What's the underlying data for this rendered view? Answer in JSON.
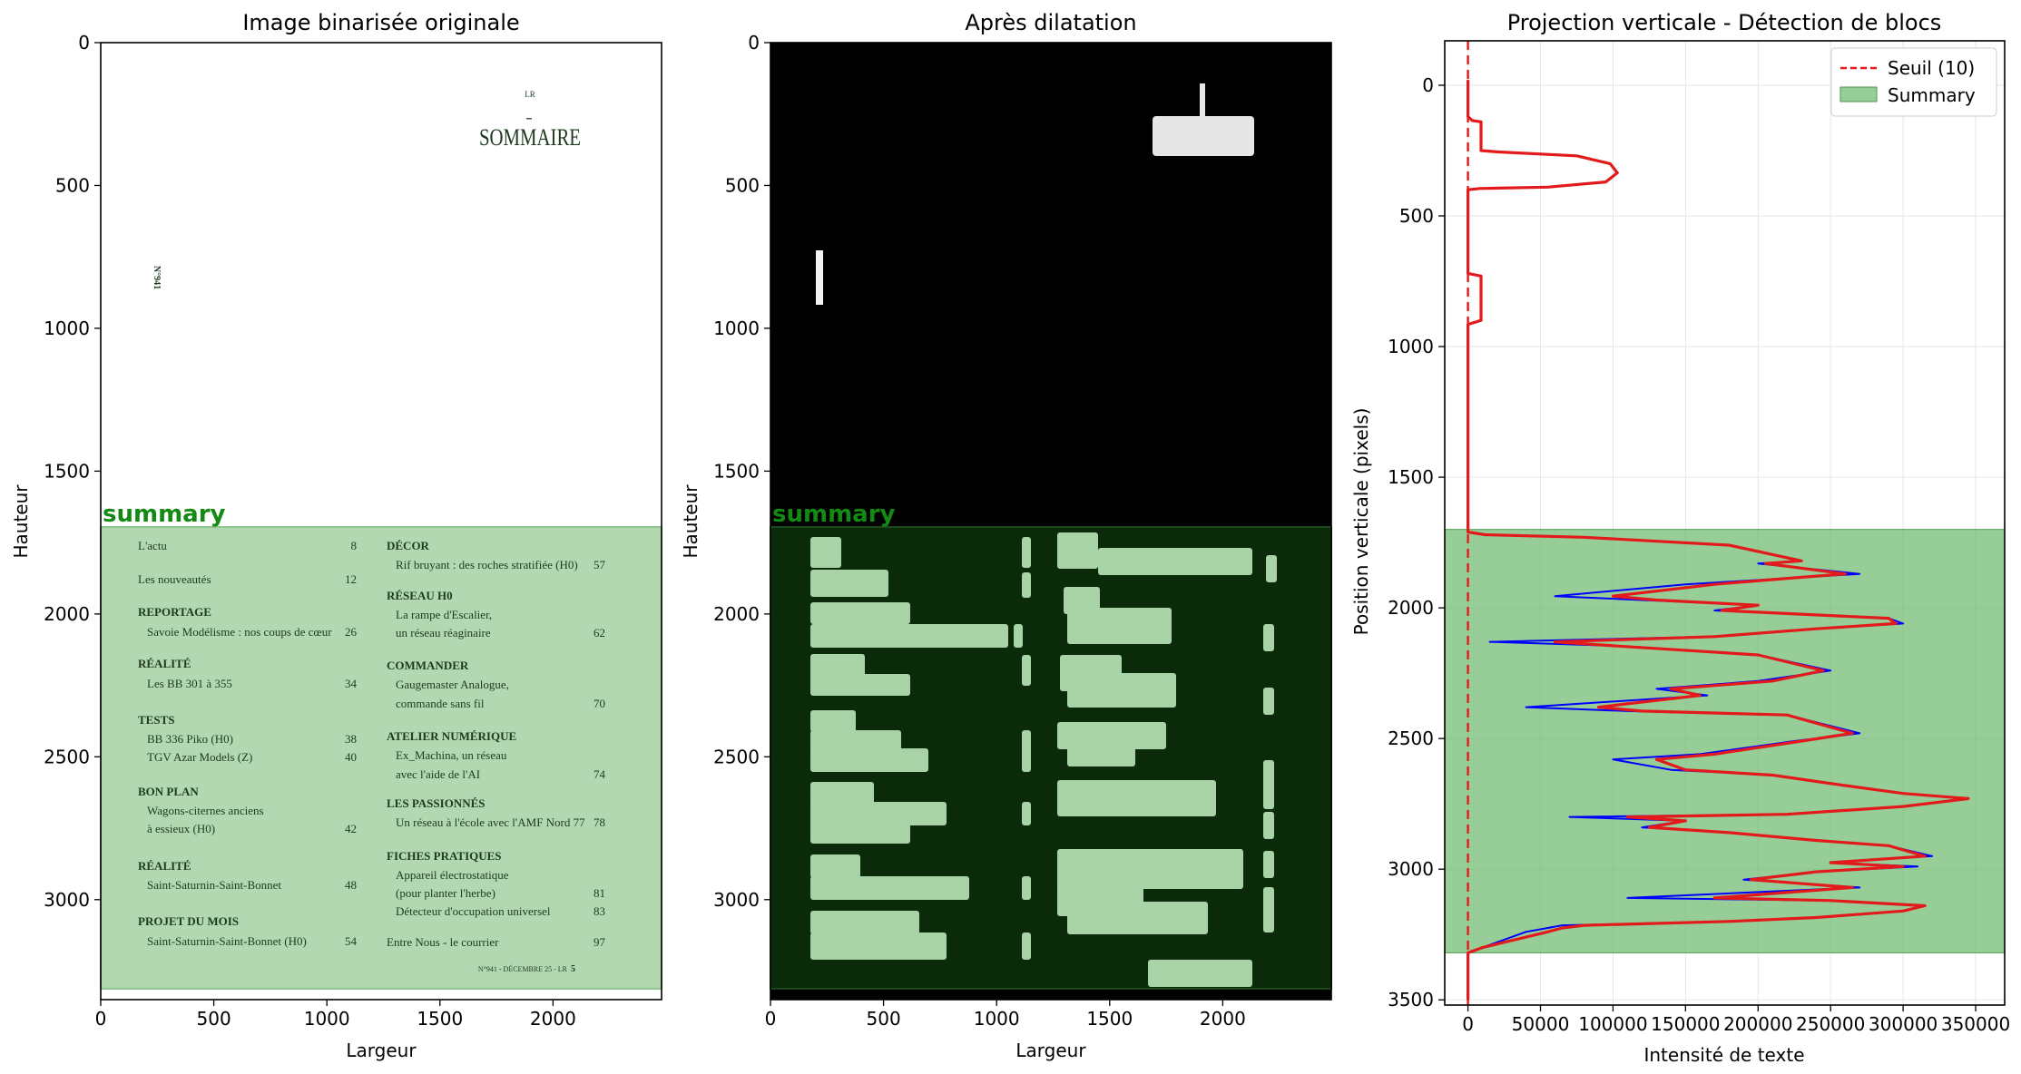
{
  "figure": {
    "panel1": {
      "title": "Image binarisée originale",
      "xlabel": "Largeur",
      "ylabel": "Hauteur"
    },
    "panel2": {
      "title": "Après dilatation",
      "xlabel": "Largeur",
      "ylabel": "Hauteur"
    },
    "panel3": {
      "title": "Projection verticale - Détection de blocs",
      "xlabel": "Intensité de texte",
      "ylabel": "Position verticale (pixels)"
    },
    "summary_label": "summary"
  },
  "document": {
    "top_mark": "LR",
    "heading": "SOMMAIRE",
    "side_number": "N°941",
    "left_column": [
      {
        "kind": "item",
        "text": "L'actu",
        "page": "8"
      },
      {
        "kind": "item",
        "text": "Les nouveautés",
        "page": "12"
      },
      {
        "kind": "head",
        "text": "REPORTAGE"
      },
      {
        "kind": "sub",
        "text": "Savoie Modélisme : nos coups de cœur",
        "page": "26"
      },
      {
        "kind": "head",
        "text": "RÉALITÉ"
      },
      {
        "kind": "sub",
        "text": "Les BB 301 à 355",
        "page": "34"
      },
      {
        "kind": "head",
        "text": "TESTS"
      },
      {
        "kind": "sub",
        "text": "BB 336 Piko (H0)",
        "page": "38"
      },
      {
        "kind": "sub",
        "text": "TGV Azar Models (Z)",
        "page": "40"
      },
      {
        "kind": "head",
        "text": "BON PLAN"
      },
      {
        "kind": "sub",
        "text": "Wagons-citernes anciens"
      },
      {
        "kind": "sub",
        "text": "à essieux (H0)",
        "page": "42"
      },
      {
        "kind": "head",
        "text": "RÉALITÉ"
      },
      {
        "kind": "sub",
        "text": "Saint-Saturnin-Saint-Bonnet",
        "page": "48"
      },
      {
        "kind": "head",
        "text": "PROJET DU MOIS"
      },
      {
        "kind": "sub",
        "text": "Saint-Saturnin-Saint-Bonnet  (H0)",
        "page": "54"
      }
    ],
    "right_column": [
      {
        "kind": "head",
        "text": "DÉCOR"
      },
      {
        "kind": "sub",
        "text": "Rif bruyant : des roches stratifiée (H0)",
        "page": "57"
      },
      {
        "kind": "head",
        "text": "RÉSEAU H0"
      },
      {
        "kind": "sub",
        "text": "La rampe d'Escalier,"
      },
      {
        "kind": "sub",
        "text": "un réseau réaginaire",
        "page": "62"
      },
      {
        "kind": "head",
        "text": "COMMANDER"
      },
      {
        "kind": "sub",
        "text": "Gaugemaster Analogue,"
      },
      {
        "kind": "sub",
        "text": "commande sans fil",
        "page": "70"
      },
      {
        "kind": "head",
        "text": "ATELIER NUMÉRIQUE"
      },
      {
        "kind": "sub",
        "text": "Ex_Machina, un réseau"
      },
      {
        "kind": "sub",
        "text": "avec l'aide de l'AI",
        "page": "74"
      },
      {
        "kind": "head",
        "text": "LES PASSIONNÉS"
      },
      {
        "kind": "sub",
        "text": "Un réseau à l'école avec l'AMF Nord 77",
        "page": "78"
      },
      {
        "kind": "head",
        "text": "FICHES PRATIQUES"
      },
      {
        "kind": "sub",
        "text": "Appareil électrostatique"
      },
      {
        "kind": "sub",
        "text": "(pour planter l'herbe)",
        "page": "81"
      },
      {
        "kind": "sub",
        "text": "Détecteur d'occupation universel",
        "page": "83"
      },
      {
        "kind": "item",
        "text": "Entre Nous - le courrier",
        "page": "97"
      }
    ],
    "footer": "N°941 - DÉCEMBRE 25 - LR",
    "footer_page": "5"
  },
  "chart_data": [
    {
      "type": "image",
      "title": "Image binarisée originale",
      "xlabel": "Largeur",
      "ylabel": "Hauteur",
      "xlim": [
        0,
        2480
      ],
      "ylim": [
        3350,
        0
      ],
      "xticks": [
        0,
        500,
        1000,
        1500,
        2000
      ],
      "yticks": [
        0,
        500,
        1000,
        1500,
        2000,
        2500,
        3000
      ],
      "summary_block": {
        "label": "summary",
        "y0": 1695,
        "y1": 3310
      }
    },
    {
      "type": "image",
      "title": "Après dilatation",
      "xlabel": "Largeur",
      "ylabel": "Hauteur",
      "xlim": [
        0,
        2480
      ],
      "ylim": [
        3350,
        0
      ],
      "xticks": [
        0,
        500,
        1000,
        1500,
        2000
      ],
      "yticks": [
        0,
        500,
        1000,
        1500,
        2000,
        2500,
        3000
      ],
      "summary_block": {
        "label": "summary",
        "y0": 1695,
        "y1": 3310
      }
    },
    {
      "type": "line",
      "title": "Projection verticale - Détection de blocs",
      "xlabel": "Intensité de texte",
      "ylabel": "Position verticale (pixels)",
      "xlim": [
        -16000,
        370000
      ],
      "ylim": [
        3520,
        -170
      ],
      "xticks": [
        0,
        50000,
        100000,
        150000,
        200000,
        250000,
        300000,
        350000
      ],
      "yticks": [
        0,
        500,
        1000,
        1500,
        2000,
        2500,
        3000,
        3500
      ],
      "grid": true,
      "legend": "top-right",
      "threshold": {
        "name": "Seuil (10)",
        "value": 10,
        "color": "#e31a1c"
      },
      "block": {
        "name": "Summary",
        "y0": 1700,
        "y1": 3320,
        "color": "#5fb35f"
      },
      "series": [
        {
          "color": "#0000ff",
          "points": [
            [
              0,
              -20
            ],
            [
              0,
              120
            ],
            [
              3000,
              135
            ],
            [
              9000,
              140
            ],
            [
              9000,
              250
            ],
            [
              20000,
              255
            ],
            [
              75000,
              270
            ],
            [
              98000,
              300
            ],
            [
              103000,
              335
            ],
            [
              95000,
              370
            ],
            [
              55000,
              390
            ],
            [
              8000,
              395
            ],
            [
              0,
              400
            ],
            [
              0,
              720
            ],
            [
              9000,
              730
            ],
            [
              9000,
              900
            ],
            [
              0,
              915
            ],
            [
              0,
              1710
            ],
            [
              12000,
              1720
            ],
            [
              80000,
              1730
            ],
            [
              180000,
              1760
            ],
            [
              230000,
              1820
            ],
            [
              200000,
              1830
            ],
            [
              270000,
              1870
            ],
            [
              225000,
              1885
            ],
            [
              150000,
              1910
            ],
            [
              60000,
              1955
            ],
            [
              120000,
              1970
            ],
            [
              200000,
              1990
            ],
            [
              170000,
              2010
            ],
            [
              290000,
              2040
            ],
            [
              300000,
              2060
            ],
            [
              240000,
              2080
            ],
            [
              170000,
              2110
            ],
            [
              15000,
              2130
            ],
            [
              100000,
              2145
            ],
            [
              200000,
              2180
            ],
            [
              250000,
              2240
            ],
            [
              200000,
              2280
            ],
            [
              130000,
              2310
            ],
            [
              165000,
              2335
            ],
            [
              40000,
              2380
            ],
            [
              110000,
              2395
            ],
            [
              220000,
              2410
            ],
            [
              270000,
              2480
            ],
            [
              225000,
              2510
            ],
            [
              160000,
              2560
            ],
            [
              100000,
              2580
            ],
            [
              140000,
              2620
            ],
            [
              210000,
              2640
            ],
            [
              260000,
              2680
            ],
            [
              300000,
              2710
            ],
            [
              345000,
              2730
            ],
            [
              300000,
              2760
            ],
            [
              220000,
              2790
            ],
            [
              70000,
              2800
            ],
            [
              150000,
              2815
            ],
            [
              120000,
              2840
            ],
            [
              180000,
              2860
            ],
            [
              240000,
              2890
            ],
            [
              290000,
              2910
            ],
            [
              320000,
              2950
            ],
            [
              250000,
              2975
            ],
            [
              310000,
              2990
            ],
            [
              240000,
              3010
            ],
            [
              190000,
              3040
            ],
            [
              270000,
              3070
            ],
            [
              110000,
              3110
            ],
            [
              250000,
              3120
            ],
            [
              315000,
              3140
            ],
            [
              300000,
              3160
            ],
            [
              240000,
              3185
            ],
            [
              180000,
              3200
            ],
            [
              65000,
              3215
            ],
            [
              55000,
              3225
            ],
            [
              40000,
              3240
            ],
            [
              10000,
              3300
            ],
            [
              0,
              3320
            ],
            [
              0,
              3500
            ]
          ]
        },
        {
          "color": "#e31a1c",
          "points": [
            [
              0,
              -20
            ],
            [
              0,
              120
            ],
            [
              3000,
              135
            ],
            [
              9000,
              140
            ],
            [
              9000,
              250
            ],
            [
              20000,
              255
            ],
            [
              75000,
              270
            ],
            [
              98000,
              300
            ],
            [
              103000,
              335
            ],
            [
              95000,
              370
            ],
            [
              55000,
              390
            ],
            [
              8000,
              395
            ],
            [
              0,
              400
            ],
            [
              0,
              720
            ],
            [
              9000,
              730
            ],
            [
              9000,
              900
            ],
            [
              0,
              915
            ],
            [
              0,
              1710
            ],
            [
              12000,
              1720
            ],
            [
              80000,
              1730
            ],
            [
              180000,
              1760
            ],
            [
              230000,
              1820
            ],
            [
              205000,
              1830
            ],
            [
              260000,
              1870
            ],
            [
              225000,
              1885
            ],
            [
              170000,
              1910
            ],
            [
              100000,
              1955
            ],
            [
              130000,
              1970
            ],
            [
              200000,
              1990
            ],
            [
              175000,
              2010
            ],
            [
              290000,
              2040
            ],
            [
              295000,
              2060
            ],
            [
              240000,
              2080
            ],
            [
              170000,
              2110
            ],
            [
              60000,
              2130
            ],
            [
              100000,
              2145
            ],
            [
              200000,
              2180
            ],
            [
              245000,
              2240
            ],
            [
              210000,
              2280
            ],
            [
              140000,
              2310
            ],
            [
              160000,
              2335
            ],
            [
              90000,
              2380
            ],
            [
              120000,
              2395
            ],
            [
              220000,
              2410
            ],
            [
              265000,
              2480
            ],
            [
              230000,
              2510
            ],
            [
              170000,
              2560
            ],
            [
              130000,
              2580
            ],
            [
              150000,
              2620
            ],
            [
              210000,
              2640
            ],
            [
              260000,
              2680
            ],
            [
              300000,
              2710
            ],
            [
              345000,
              2730
            ],
            [
              300000,
              2760
            ],
            [
              220000,
              2790
            ],
            [
              110000,
              2800
            ],
            [
              150000,
              2815
            ],
            [
              125000,
              2840
            ],
            [
              180000,
              2860
            ],
            [
              240000,
              2890
            ],
            [
              290000,
              2910
            ],
            [
              315000,
              2950
            ],
            [
              250000,
              2975
            ],
            [
              300000,
              2990
            ],
            [
              240000,
              3010
            ],
            [
              195000,
              3040
            ],
            [
              265000,
              3070
            ],
            [
              170000,
              3110
            ],
            [
              250000,
              3120
            ],
            [
              315000,
              3140
            ],
            [
              300000,
              3160
            ],
            [
              240000,
              3185
            ],
            [
              180000,
              3200
            ],
            [
              80000,
              3215
            ],
            [
              65000,
              3225
            ],
            [
              55000,
              3240
            ],
            [
              10000,
              3300
            ],
            [
              0,
              3320
            ],
            [
              0,
              3500
            ]
          ]
        }
      ]
    }
  ]
}
